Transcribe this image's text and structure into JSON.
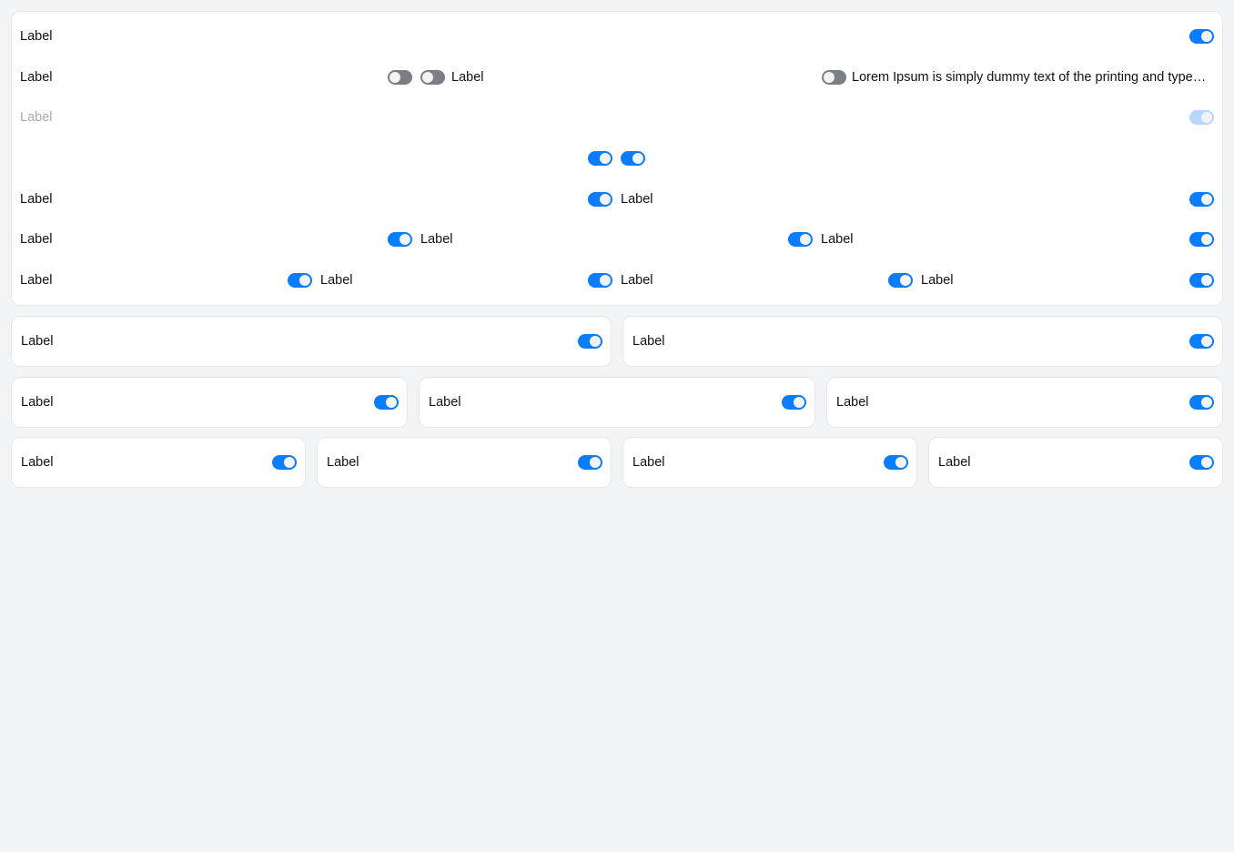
{
  "label": "Label",
  "lorem": "Lorem Ipsum is simply dummy text of the printing and typesetting industry.",
  "colors": {
    "on": "#0a7cff",
    "off": "#7b7e85",
    "disabled": "#b7d7fc"
  }
}
